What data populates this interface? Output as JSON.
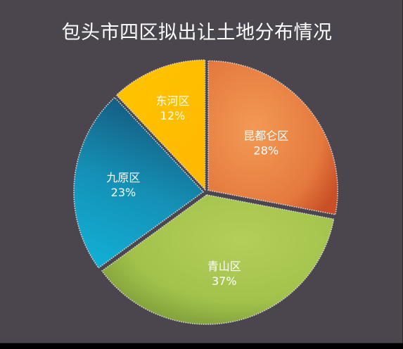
{
  "chart_data": {
    "type": "pie",
    "title": "包头市四区拟出让土地分布情况",
    "slices": [
      {
        "name": "昆都仑区",
        "value": 28,
        "label": "28%",
        "color": "#e1713a"
      },
      {
        "name": "青山区",
        "value": 37,
        "label": "37%",
        "color": "#9dbf48"
      },
      {
        "name": "九原区",
        "value": 23,
        "label": "23%",
        "color": "#1992b6"
      },
      {
        "name": "东河区",
        "value": 12,
        "label": "12%",
        "color": "#ffc000"
      }
    ],
    "start": "12 o'clock",
    "direction": "clockwise",
    "legend": "none",
    "background": "#4b454d"
  }
}
